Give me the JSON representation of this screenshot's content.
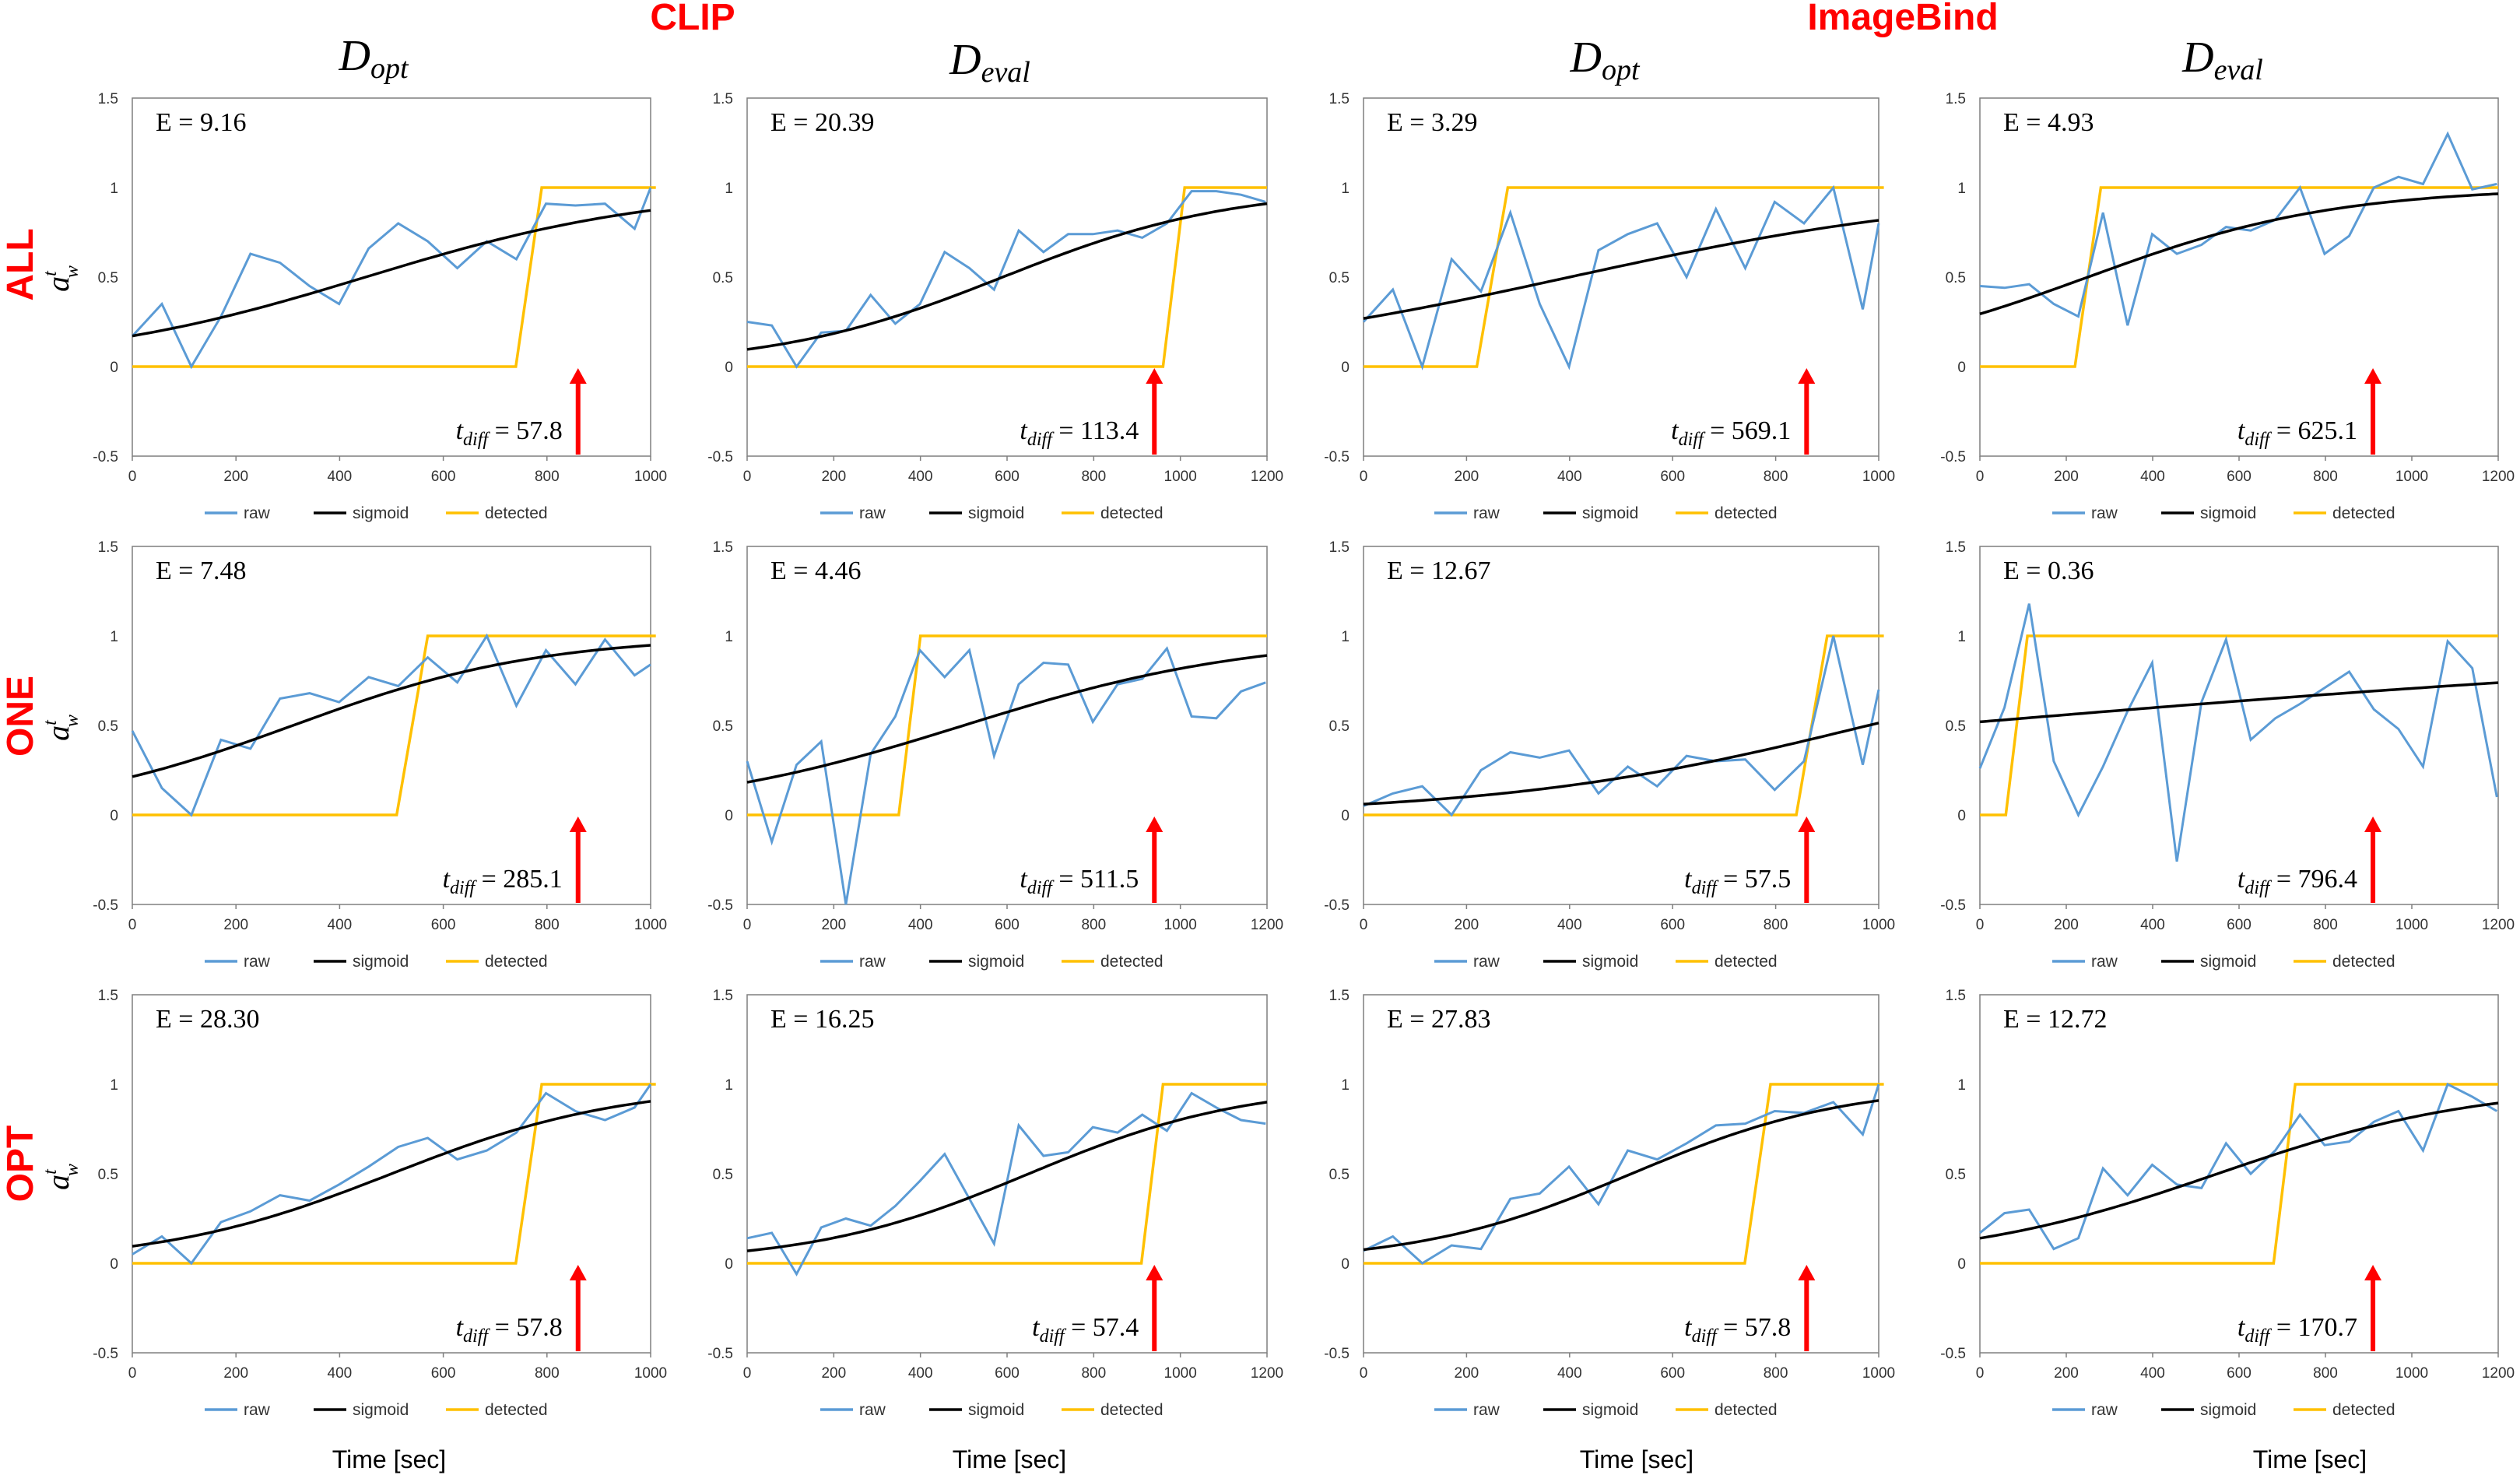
{
  "header": {
    "groups": [
      "CLIP",
      "ImageBind"
    ],
    "columns": [
      {
        "main": "D",
        "sub": "opt"
      },
      {
        "main": "D",
        "sub": "eval"
      },
      {
        "main": "D",
        "sub": "opt"
      },
      {
        "main": "D",
        "sub": "eval"
      }
    ],
    "rows": [
      "ALL",
      "ONE",
      "OPT"
    ],
    "ylabel_main": "a",
    "ylabel_sup": "t",
    "ylabel_sub": "w",
    "xlabel": "Time [sec]",
    "legend": [
      "raw",
      "sigmoid",
      "detected"
    ],
    "colors": {
      "raw": "#5b9bd5",
      "sigmoid": "#000000",
      "detected": "#ffc000",
      "arrow": "#ff0000",
      "label": "#ff0000"
    }
  },
  "chart_data": [
    {
      "type": "line",
      "row": "ALL",
      "col": 0,
      "ylim": [
        -0.5,
        1.5
      ],
      "yticks": [
        "-0.5",
        "0",
        "0.5",
        "1",
        "1.5"
      ],
      "xlim": [
        0,
        1000
      ],
      "xticks": [
        "0",
        "200",
        "400",
        "600",
        "800",
        "1000"
      ],
      "E": "E = 9.16",
      "tdiff": "57.8",
      "arrow_x": 860,
      "raw_x": [
        0,
        57,
        114,
        171,
        228,
        285,
        342,
        399,
        456,
        513,
        570,
        627,
        684,
        741,
        798,
        855,
        912,
        969,
        1026
      ],
      "raw_y": [
        0.17,
        0.35,
        0.0,
        0.28,
        0.63,
        0.58,
        0.45,
        0.35,
        0.66,
        0.8,
        0.7,
        0.55,
        0.7,
        0.6,
        0.91,
        0.9,
        0.91,
        0.77,
        1.0
      ],
      "sig": {
        "L": 1.0,
        "k": 0.0035,
        "x0": 450
      },
      "det": [
        [
          0,
          0
        ],
        [
          740,
          0
        ],
        [
          790,
          1
        ],
        [
          1010,
          1
        ]
      ]
    },
    {
      "type": "line",
      "row": "ALL",
      "col": 1,
      "ylim": [
        -0.5,
        1.5
      ],
      "yticks": [
        "-0.5",
        "0",
        "0.5",
        "1",
        "1.5"
      ],
      "xlim": [
        0,
        1200
      ],
      "xticks": [
        "0",
        "200",
        "400",
        "600",
        "800",
        "1000",
        "1200"
      ],
      "E": "E = 20.39",
      "tdiff": "113.4",
      "arrow_x": 940,
      "raw_x": [
        0,
        57,
        114,
        171,
        228,
        285,
        342,
        399,
        456,
        513,
        570,
        627,
        684,
        741,
        798,
        855,
        912,
        969,
        1026,
        1083,
        1140,
        1197
      ],
      "raw_y": [
        0.25,
        0.23,
        0.0,
        0.19,
        0.2,
        0.4,
        0.24,
        0.35,
        0.64,
        0.55,
        0.43,
        0.76,
        0.64,
        0.74,
        0.74,
        0.76,
        0.72,
        0.8,
        0.98,
        0.98,
        0.96,
        0.92
      ],
      "sig": {
        "L": 1.0,
        "k": 0.0038,
        "x0": 590
      },
      "det": [
        [
          0,
          0
        ],
        [
          960,
          0
        ],
        [
          1010,
          1
        ],
        [
          1200,
          1
        ]
      ]
    },
    {
      "type": "line",
      "row": "ALL",
      "col": 2,
      "ylim": [
        -0.5,
        1.5
      ],
      "yticks": [
        "-0.5",
        "0",
        "0.5",
        "1",
        "1.5"
      ],
      "xlim": [
        0,
        1000
      ],
      "xticks": [
        "0",
        "200",
        "400",
        "600",
        "800",
        "1000"
      ],
      "E": "E = 3.29",
      "tdiff": "569.1",
      "arrow_x": 860,
      "raw_x": [
        0,
        57,
        114,
        171,
        228,
        285,
        342,
        399,
        456,
        513,
        570,
        627,
        684,
        741,
        798,
        855,
        912,
        969,
        1026
      ],
      "raw_y": [
        0.25,
        0.43,
        0.0,
        0.6,
        0.42,
        0.86,
        0.35,
        0.0,
        0.65,
        0.74,
        0.8,
        0.5,
        0.88,
        0.55,
        0.92,
        0.8,
        1.0,
        0.32,
        0.8
      ],
      "sig": {
        "L": 1.0,
        "k": 0.0025,
        "x0": 400
      },
      "det": [
        [
          0,
          0
        ],
        [
          220,
          0
        ],
        [
          280,
          1
        ],
        [
          1010,
          1
        ]
      ]
    },
    {
      "type": "line",
      "row": "ALL",
      "col": 3,
      "ylim": [
        -0.5,
        1.5
      ],
      "yticks": [
        "-0.5",
        "0",
        "0.5",
        "1",
        "1.5"
      ],
      "xlim": [
        0,
        1200
      ],
      "xticks": [
        "0",
        "200",
        "400",
        "600",
        "800",
        "1000",
        "1200"
      ],
      "E": "E = 4.93",
      "tdiff": "625.1",
      "arrow_x": 910,
      "raw_x": [
        0,
        57,
        114,
        171,
        228,
        285,
        342,
        399,
        456,
        513,
        570,
        627,
        684,
        741,
        798,
        855,
        912,
        969,
        1026,
        1083,
        1140,
        1197
      ],
      "raw_y": [
        0.45,
        0.44,
        0.46,
        0.35,
        0.28,
        0.86,
        0.23,
        0.74,
        0.63,
        0.68,
        0.78,
        0.76,
        0.82,
        1.0,
        0.63,
        0.73,
        1.0,
        1.06,
        1.02,
        1.3,
        0.99,
        1.02
      ],
      "sig": {
        "L": 1.0,
        "k": 0.0035,
        "x0": 250
      },
      "det": [
        [
          0,
          0
        ],
        [
          220,
          0
        ],
        [
          280,
          1
        ],
        [
          1200,
          1
        ]
      ]
    },
    {
      "type": "line",
      "row": "ONE",
      "col": 0,
      "ylim": [
        -0.5,
        1.5
      ],
      "yticks": [
        "-0.5",
        "0",
        "0.5",
        "1",
        "1.5"
      ],
      "xlim": [
        0,
        1000
      ],
      "xticks": [
        "0",
        "200",
        "400",
        "600",
        "800",
        "1000"
      ],
      "E": "E = 7.48",
      "tdiff": "285.1",
      "arrow_x": 860,
      "raw_x": [
        0,
        57,
        114,
        171,
        228,
        285,
        342,
        399,
        456,
        513,
        570,
        627,
        684,
        741,
        798,
        855,
        912,
        969,
        1026
      ],
      "raw_y": [
        0.47,
        0.15,
        0.0,
        0.42,
        0.37,
        0.65,
        0.68,
        0.63,
        0.77,
        0.72,
        0.88,
        0.74,
        1.0,
        0.61,
        0.92,
        0.73,
        0.98,
        0.78,
        0.84
      ],
      "sig": {
        "L": 1.0,
        "k": 0.0042,
        "x0": 310
      },
      "det": [
        [
          0,
          0
        ],
        [
          510,
          0
        ],
        [
          570,
          1
        ],
        [
          1010,
          1
        ]
      ]
    },
    {
      "type": "line",
      "row": "ONE",
      "col": 1,
      "ylim": [
        -0.5,
        1.5
      ],
      "yticks": [
        "-0.5",
        "0",
        "0.5",
        "1",
        "1.5"
      ],
      "xlim": [
        0,
        1200
      ],
      "xticks": [
        "0",
        "200",
        "400",
        "600",
        "800",
        "1000",
        "1200"
      ],
      "E": "E = 4.46",
      "tdiff": "511.5",
      "arrow_x": 940,
      "raw_x": [
        0,
        57,
        114,
        171,
        228,
        285,
        342,
        399,
        456,
        513,
        570,
        627,
        684,
        741,
        798,
        855,
        912,
        969,
        1026,
        1083,
        1140,
        1197
      ],
      "raw_y": [
        0.3,
        -0.15,
        0.28,
        0.41,
        -0.5,
        0.34,
        0.55,
        0.92,
        0.77,
        0.92,
        0.33,
        0.73,
        0.85,
        0.84,
        0.52,
        0.73,
        0.76,
        0.93,
        0.55,
        0.54,
        0.69,
        0.74
      ],
      "sig": {
        "L": 1.0,
        "k": 0.003,
        "x0": 500
      },
      "det": [
        [
          0,
          0
        ],
        [
          350,
          0
        ],
        [
          400,
          1
        ],
        [
          1200,
          1
        ]
      ]
    },
    {
      "type": "line",
      "row": "ONE",
      "col": 2,
      "ylim": [
        -0.5,
        1.5
      ],
      "yticks": [
        "-0.5",
        "0",
        "0.5",
        "1",
        "1.5"
      ],
      "xlim": [
        0,
        1000
      ],
      "xticks": [
        "0",
        "200",
        "400",
        "600",
        "800",
        "1000"
      ],
      "E": "E = 12.67",
      "tdiff": "57.5",
      "arrow_x": 860,
      "raw_x": [
        0,
        57,
        114,
        171,
        228,
        285,
        342,
        399,
        456,
        513,
        570,
        627,
        684,
        741,
        798,
        855,
        912,
        969,
        1026
      ],
      "raw_y": [
        0.05,
        0.12,
        0.16,
        0.0,
        0.25,
        0.35,
        0.32,
        0.36,
        0.12,
        0.27,
        0.16,
        0.33,
        0.3,
        0.31,
        0.14,
        0.3,
        1.0,
        0.28,
        0.7
      ],
      "sig": {
        "L": 1.0,
        "k": 0.0028,
        "x0": 980
      },
      "det": [
        [
          0,
          0
        ],
        [
          840,
          0
        ],
        [
          900,
          1
        ],
        [
          1010,
          1
        ]
      ]
    },
    {
      "type": "line",
      "row": "ONE",
      "col": 3,
      "ylim": [
        -0.5,
        1.5
      ],
      "yticks": [
        "-0.5",
        "0",
        "0.5",
        "1",
        "1.5"
      ],
      "xlim": [
        0,
        1200
      ],
      "xticks": [
        "0",
        "200",
        "400",
        "600",
        "800",
        "1000",
        "1200"
      ],
      "E": "E = 0.36",
      "tdiff": "796.4",
      "arrow_x": 910,
      "raw_x": [
        0,
        57,
        114,
        171,
        228,
        285,
        342,
        399,
        456,
        513,
        570,
        627,
        684,
        741,
        798,
        855,
        912,
        969,
        1026,
        1083,
        1140,
        1197
      ],
      "raw_y": [
        0.26,
        0.6,
        1.18,
        0.3,
        0.0,
        0.27,
        0.58,
        0.85,
        -0.26,
        0.63,
        0.98,
        0.42,
        0.54,
        0.62,
        0.71,
        0.8,
        0.59,
        0.48,
        0.27,
        0.97,
        0.82,
        0.1
      ],
      "sig": {
        "L": 1.0,
        "k": 0.0008,
        "x0": -100
      },
      "det": [
        [
          0,
          0
        ],
        [
          60,
          0
        ],
        [
          110,
          1
        ],
        [
          1200,
          1
        ]
      ]
    },
    {
      "type": "line",
      "row": "OPT",
      "col": 0,
      "ylim": [
        -0.5,
        1.5
      ],
      "yticks": [
        "-0.5",
        "0",
        "0.5",
        "1",
        "1.5"
      ],
      "xlim": [
        0,
        1000
      ],
      "xticks": [
        "0",
        "200",
        "400",
        "600",
        "800",
        "1000"
      ],
      "E": "E = 28.30",
      "tdiff": "57.8",
      "arrow_x": 860,
      "raw_x": [
        0,
        57,
        114,
        171,
        228,
        285,
        342,
        399,
        456,
        513,
        570,
        627,
        684,
        741,
        798,
        855,
        912,
        969,
        1026
      ],
      "raw_y": [
        0.05,
        0.15,
        0.0,
        0.23,
        0.29,
        0.38,
        0.35,
        0.44,
        0.54,
        0.65,
        0.7,
        0.58,
        0.63,
        0.73,
        0.95,
        0.85,
        0.8,
        0.87,
        1.0
      ],
      "sig": {
        "L": 1.0,
        "k": 0.0045,
        "x0": 500
      },
      "det": [
        [
          0,
          0
        ],
        [
          740,
          0
        ],
        [
          790,
          1
        ],
        [
          1010,
          1
        ]
      ]
    },
    {
      "type": "line",
      "row": "OPT",
      "col": 1,
      "ylim": [
        -0.5,
        1.5
      ],
      "yticks": [
        "-0.5",
        "0",
        "0.5",
        "1",
        "1.5"
      ],
      "xlim": [
        0,
        1200
      ],
      "xticks": [
        "0",
        "200",
        "400",
        "600",
        "800",
        "1000",
        "1200"
      ],
      "E": "E = 16.25",
      "tdiff": "57.4",
      "arrow_x": 940,
      "raw_x": [
        0,
        57,
        114,
        171,
        228,
        285,
        342,
        399,
        456,
        513,
        570,
        627,
        684,
        741,
        798,
        855,
        912,
        969,
        1026,
        1083,
        1140,
        1197
      ],
      "raw_y": [
        0.14,
        0.17,
        -0.06,
        0.2,
        0.25,
        0.21,
        0.32,
        0.46,
        0.61,
        0.36,
        0.11,
        0.77,
        0.6,
        0.62,
        0.76,
        0.73,
        0.83,
        0.74,
        0.95,
        0.87,
        0.8,
        0.78
      ],
      "sig": {
        "L": 1.0,
        "k": 0.004,
        "x0": 650
      },
      "det": [
        [
          0,
          0
        ],
        [
          910,
          0
        ],
        [
          960,
          1
        ],
        [
          1200,
          1
        ]
      ]
    },
    {
      "type": "line",
      "row": "OPT",
      "col": 2,
      "ylim": [
        -0.5,
        1.5
      ],
      "yticks": [
        "-0.5",
        "0",
        "0.5",
        "1",
        "1.5"
      ],
      "xlim": [
        0,
        1000
      ],
      "xticks": [
        "0",
        "200",
        "400",
        "600",
        "800",
        "1000"
      ],
      "E": "E = 27.83",
      "tdiff": "57.8",
      "arrow_x": 860,
      "raw_x": [
        0,
        57,
        114,
        171,
        228,
        285,
        342,
        399,
        456,
        513,
        570,
        627,
        684,
        741,
        798,
        855,
        912,
        969,
        1026
      ],
      "raw_y": [
        0.07,
        0.15,
        0.0,
        0.1,
        0.08,
        0.36,
        0.39,
        0.54,
        0.33,
        0.63,
        0.58,
        0.67,
        0.77,
        0.78,
        0.85,
        0.84,
        0.9,
        0.72,
        1.0
      ],
      "sig": {
        "L": 1.0,
        "k": 0.0048,
        "x0": 520
      },
      "det": [
        [
          0,
          0
        ],
        [
          740,
          0
        ],
        [
          790,
          1
        ],
        [
          1010,
          1
        ]
      ]
    },
    {
      "type": "line",
      "row": "OPT",
      "col": 3,
      "ylim": [
        -0.5,
        1.5
      ],
      "yticks": [
        "-0.5",
        "0",
        "0.5",
        "1",
        "1.5"
      ],
      "xlim": [
        0,
        1200
      ],
      "xticks": [
        "0",
        "200",
        "400",
        "600",
        "800",
        "1000",
        "1200"
      ],
      "E": "E = 12.72",
      "tdiff": "170.7",
      "arrow_x": 910,
      "raw_x": [
        0,
        57,
        114,
        171,
        228,
        285,
        342,
        399,
        456,
        513,
        570,
        627,
        684,
        741,
        798,
        855,
        912,
        969,
        1026,
        1083,
        1140,
        1197
      ],
      "raw_y": [
        0.17,
        0.28,
        0.3,
        0.08,
        0.14,
        0.53,
        0.38,
        0.55,
        0.44,
        0.42,
        0.67,
        0.5,
        0.63,
        0.83,
        0.66,
        0.68,
        0.79,
        0.85,
        0.63,
        1.0,
        0.93,
        0.85
      ],
      "sig": {
        "L": 1.0,
        "k": 0.0033,
        "x0": 550
      },
      "det": [
        [
          0,
          0
        ],
        [
          680,
          0
        ],
        [
          730,
          1
        ],
        [
          1200,
          1
        ]
      ]
    }
  ]
}
